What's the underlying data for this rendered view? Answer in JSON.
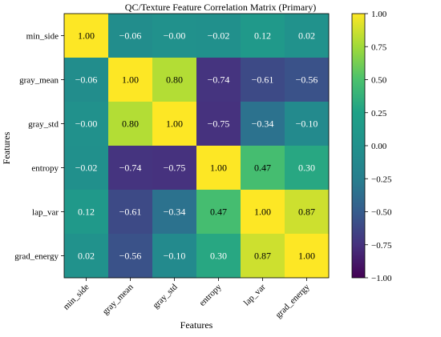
{
  "chart_data": {
    "type": "heatmap",
    "title": "QC/Texture Feature Correlation Matrix (Primary)",
    "xlabel": "Features",
    "ylabel": "Features",
    "x_categories": [
      "min_side",
      "gray_mean",
      "gray_std",
      "entropy",
      "lap_var",
      "grad_energy"
    ],
    "y_categories": [
      "min_side",
      "gray_mean",
      "gray_std",
      "entropy",
      "lap_var",
      "grad_energy"
    ],
    "values": [
      [
        1.0,
        -0.06,
        -0.0,
        -0.02,
        0.12,
        0.02
      ],
      [
        -0.06,
        1.0,
        0.8,
        -0.74,
        -0.61,
        -0.56
      ],
      [
        -0.0,
        0.8,
        1.0,
        -0.75,
        -0.34,
        -0.1
      ],
      [
        -0.02,
        -0.74,
        -0.75,
        1.0,
        0.47,
        0.3
      ],
      [
        0.12,
        -0.61,
        -0.34,
        0.47,
        1.0,
        0.87
      ],
      [
        0.02,
        -0.56,
        -0.1,
        0.3,
        0.87,
        1.0
      ]
    ],
    "cell_labels": [
      [
        "1.00",
        "−0.06",
        "−0.00",
        "−0.02",
        "0.12",
        "0.02"
      ],
      [
        "−0.06",
        "1.00",
        "0.80",
        "−0.74",
        "−0.61",
        "−0.56"
      ],
      [
        "−0.00",
        "0.80",
        "1.00",
        "−0.75",
        "−0.34",
        "−0.10"
      ],
      [
        "−0.02",
        "−0.74",
        "−0.75",
        "1.00",
        "0.47",
        "0.30"
      ],
      [
        "0.12",
        "−0.61",
        "−0.34",
        "0.47",
        "1.00",
        "0.87"
      ],
      [
        "0.02",
        "−0.56",
        "−0.10",
        "0.30",
        "0.87",
        "1.00"
      ]
    ],
    "colormap": "viridis",
    "value_range": [
      -1.0,
      1.0
    ],
    "colorbar": {
      "ticks": [
        1.0,
        0.75,
        0.5,
        0.25,
        0.0,
        -0.25,
        -0.5,
        -0.75,
        -1.0
      ],
      "tick_labels": [
        "1.00",
        "0.75",
        "0.50",
        "0.25",
        "0.00",
        "−0.25",
        "−0.50",
        "−0.75",
        "−1.00"
      ]
    },
    "grid": false
  }
}
